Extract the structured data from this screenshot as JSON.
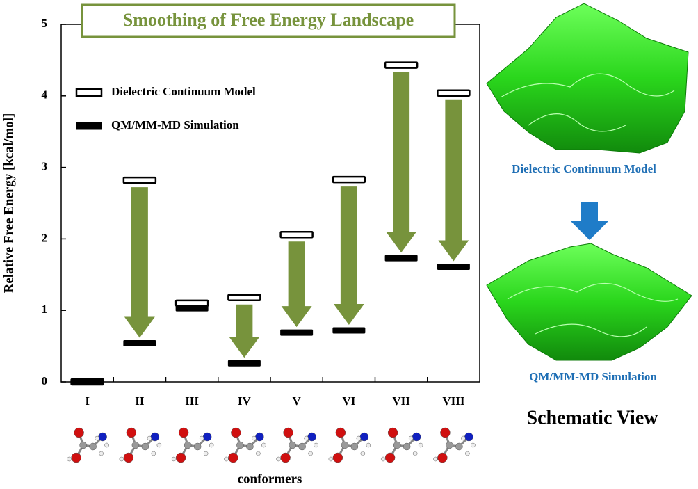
{
  "chart_data": {
    "type": "bar",
    "title": "Smoothing of Free Energy Landscape",
    "x_label": "conformers",
    "y_label": "Relative Free Energy [kcal/mol]",
    "categories": [
      "I",
      "II",
      "III",
      "IV",
      "V",
      "VI",
      "VII",
      "VIII"
    ],
    "series": [
      {
        "name": "Dielectric Continuum Model",
        "color": "#ffffff",
        "values": [
          0,
          2.82,
          1.1,
          1.18,
          2.06,
          2.83,
          4.43,
          4.04
        ]
      },
      {
        "name": "QM/MM-MD Simulation",
        "color": "#000000",
        "values": [
          0,
          0.54,
          1.03,
          0.26,
          0.69,
          0.72,
          1.73,
          1.61
        ]
      }
    ],
    "ylim": [
      0,
      5
    ],
    "yticks": [
      0,
      1,
      2,
      3,
      4,
      5
    ],
    "grid": false,
    "legend": "upper left",
    "arrow_color": "#77933c"
  },
  "schematic": {
    "title": "Schematic View",
    "top_label": "Dielectric Continuum Model",
    "bottom_label": "QM/MM-MD Simulation"
  }
}
